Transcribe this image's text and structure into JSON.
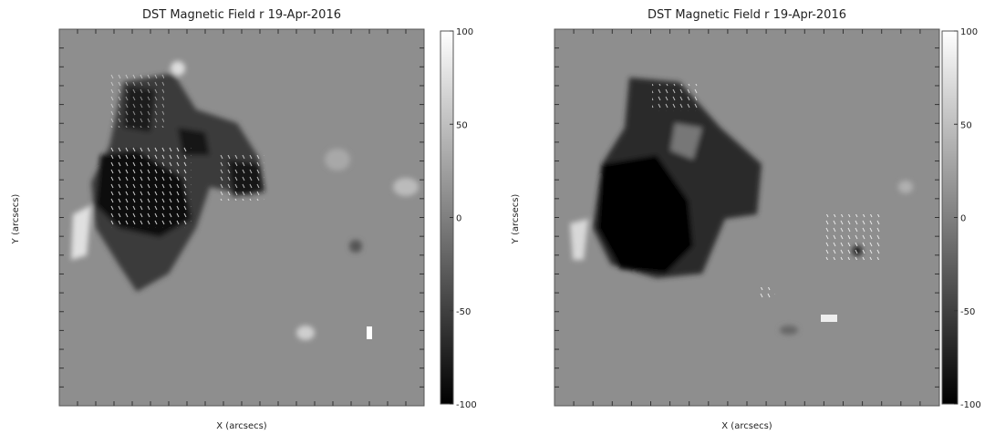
{
  "chart_data": [
    {
      "type": "heatmap",
      "title": "DST Magnetic Field r 19-Apr-2016",
      "xlabel": "X (arcsecs)",
      "ylabel": "Y (arcsecs)",
      "clim": [
        -100,
        100
      ],
      "cticks": [
        100,
        50,
        0,
        -50,
        -100
      ]
    },
    {
      "type": "heatmap",
      "title": "DST Magnetic Field r 19-Apr-2016",
      "xlabel": "X (arcsecs)",
      "ylabel": "Y (arcsecs)",
      "clim": [
        -100,
        100
      ],
      "cticks": [
        100,
        50,
        0,
        -50,
        -100
      ]
    }
  ]
}
